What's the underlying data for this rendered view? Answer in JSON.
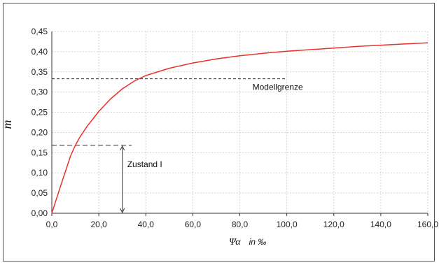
{
  "chart_data": {
    "type": "line",
    "xlabel": "Ψα",
    "xlabel_suffix": "in ‰",
    "ylabel": "m",
    "xlim": [
      0,
      160
    ],
    "ylim": [
      0,
      0.45
    ],
    "grid": true,
    "x_ticks": [
      "0,0",
      "20,0",
      "40,0",
      "60,0",
      "80,0",
      "100,0",
      "120,0",
      "140,0",
      "160,0"
    ],
    "y_ticks": [
      "0,00",
      "0,05",
      "0,10",
      "0,15",
      "0,20",
      "0,25",
      "0,30",
      "0,35",
      "0,40",
      "0,45"
    ],
    "series": [
      {
        "color": "#e8322a",
        "x": [
          0,
          2,
          4,
          6,
          8,
          10,
          12,
          15,
          20,
          25,
          30,
          35,
          40,
          50,
          60,
          70,
          80,
          90,
          100,
          110,
          120,
          130,
          140,
          150,
          160
        ],
        "y": [
          0,
          0.036,
          0.072,
          0.107,
          0.142,
          0.168,
          0.189,
          0.215,
          0.252,
          0.283,
          0.308,
          0.327,
          0.341,
          0.359,
          0.372,
          0.382,
          0.39,
          0.396,
          0.401,
          0.405,
          0.409,
          0.413,
          0.416,
          0.419,
          0.422
        ]
      }
    ],
    "annotations": [
      {
        "text": "Modellgrenze",
        "y": 0.333,
        "x_start": 0,
        "x_end": 100
      },
      {
        "text": "Zustand I",
        "y": 0.168,
        "x_start": 0,
        "x_end": 34,
        "arrow_x": 30
      }
    ]
  }
}
